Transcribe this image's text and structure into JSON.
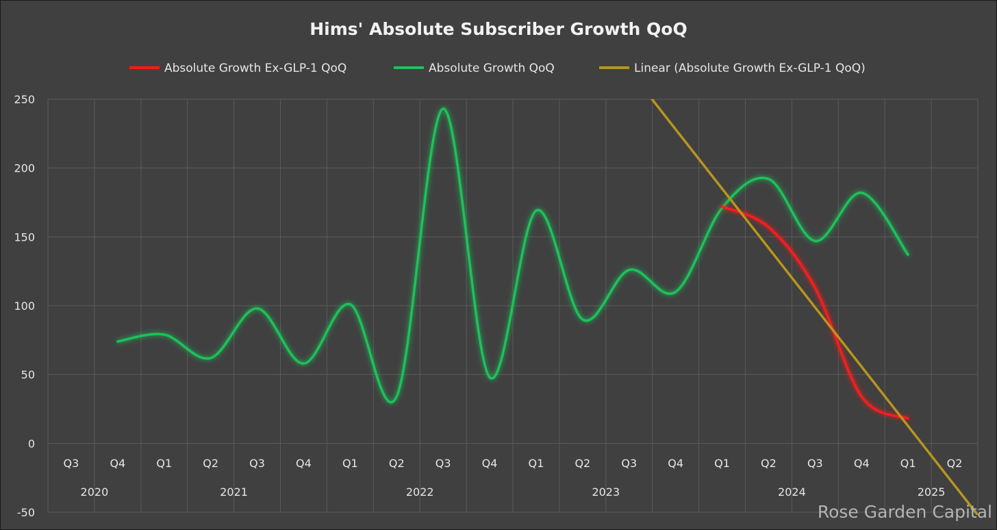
{
  "chart_data": {
    "type": "line",
    "title": "Hims' Absolute Subscriber Growth QoQ",
    "xlabel": "",
    "ylabel": "",
    "ylim": [
      -50,
      250
    ],
    "yticks": [
      250,
      200,
      150,
      100,
      50,
      0,
      -50
    ],
    "grid": true,
    "legend_position": "top",
    "categories": [
      "Q3",
      "Q4",
      "Q1",
      "Q2",
      "Q3",
      "Q4",
      "Q1",
      "Q2",
      "Q3",
      "Q4",
      "Q1",
      "Q2",
      "Q3",
      "Q4",
      "Q1",
      "Q2",
      "Q3",
      "Q4",
      "Q1",
      "Q2"
    ],
    "year_groups": [
      {
        "label": "2020",
        "start": 0,
        "count": 2
      },
      {
        "label": "2021",
        "start": 2,
        "count": 4
      },
      {
        "label": "2022",
        "start": 6,
        "count": 4
      },
      {
        "label": "2023",
        "start": 10,
        "count": 4
      },
      {
        "label": "2024",
        "start": 14,
        "count": 4
      },
      {
        "label": "2025",
        "start": 18,
        "count": 2
      }
    ],
    "series": [
      {
        "name": "Absolute Growth Ex-GLP-1 QoQ",
        "color": "#ff1a1a",
        "values": [
          null,
          null,
          null,
          null,
          null,
          null,
          null,
          null,
          null,
          null,
          null,
          null,
          null,
          null,
          172,
          157,
          113,
          34,
          18,
          null
        ]
      },
      {
        "name": "Absolute Growth QoQ",
        "color": "#1fc25a",
        "values": [
          null,
          74,
          79,
          62,
          98,
          58,
          101,
          34,
          243,
          48,
          169,
          90,
          126,
          110,
          171,
          192,
          147,
          182,
          137,
          null
        ]
      },
      {
        "name": "Linear (Absolute Growth Ex-GLP-1 QoQ)",
        "color": "#b8951e",
        "trend_of": 0,
        "x_range": [
          12.4,
          19.5
        ]
      }
    ],
    "watermark": "Rose Garden Capital"
  }
}
